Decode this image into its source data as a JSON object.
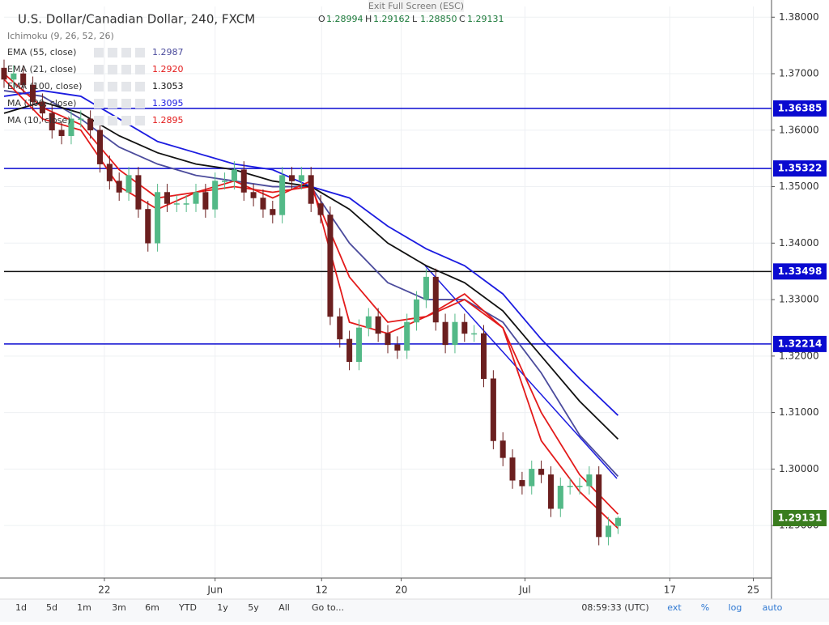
{
  "ui": {
    "title": "U.S. Dollar/Canadian Dollar, 240, FXCM",
    "exit": "Exit Full Screen (ESC)",
    "ohlc": [
      {
        "key": "O",
        "value": "1.28994"
      },
      {
        "key": "H",
        "value": "1.29162"
      },
      {
        "key": "L",
        "value": "1.28850"
      },
      {
        "key": "C",
        "value": "1.29131"
      }
    ],
    "indicator": "Ichimoku (9, 26, 52, 26)",
    "ranges": [
      "1d",
      "5d",
      "1m",
      "3m",
      "6m",
      "YTD",
      "1y",
      "5y",
      "All",
      "Go to..."
    ],
    "time": "08:59:33 (UTC)",
    "options": [
      "ext",
      "%",
      "log",
      "auto"
    ]
  },
  "chart_data": {
    "type": "candlestick",
    "xlim": [
      0,
      80
    ],
    "ylim": [
      1.2807,
      1.3819
    ],
    "xticks": [
      {
        "value": 10.46,
        "label": "22"
      },
      {
        "value": 22.0,
        "label": "Jun"
      },
      {
        "value": 33.1,
        "label": "12"
      },
      {
        "value": 41.4,
        "label": "20"
      },
      {
        "value": 54.3,
        "label": "Jul"
      },
      {
        "value": 69.4,
        "label": "17"
      },
      {
        "value": 78.1,
        "label": "25"
      }
    ],
    "yticks": [
      {
        "value": 1.38,
        "label": "1.38000"
      },
      {
        "value": 1.37,
        "label": "1.37000"
      },
      {
        "value": 1.36,
        "label": "1.36000"
      },
      {
        "value": 1.35,
        "label": "1.35000"
      },
      {
        "value": 1.34,
        "label": "1.34000"
      },
      {
        "value": 1.33,
        "label": "1.33000"
      },
      {
        "value": 1.32,
        "label": "1.32000"
      },
      {
        "value": 1.31,
        "label": "1.31000"
      },
      {
        "value": 1.3,
        "label": "1.30000"
      },
      {
        "value": 1.29,
        "label": "1.29000"
      }
    ],
    "grid": true,
    "up_color": "#53b987",
    "down_color": "#6b1f1f",
    "last_color": "#3a7d1f",
    "badge_color": "#0a0ad0",
    "x": [
      0,
      1,
      2,
      3,
      4,
      5,
      6,
      7,
      8,
      9,
      10,
      11,
      12,
      13,
      14,
      15,
      16,
      17,
      18,
      19,
      20,
      21,
      22,
      23,
      24,
      25,
      26,
      27,
      28,
      29,
      30,
      31,
      32,
      33,
      34,
      35,
      36,
      37,
      38,
      39,
      40,
      41,
      42,
      43,
      44,
      45,
      46,
      47,
      48,
      49,
      50,
      51,
      52,
      53,
      54,
      55,
      56,
      57,
      58,
      59,
      60,
      61,
      62,
      63,
      64
    ],
    "open": [
      1.371,
      1.369,
      1.37,
      1.368,
      1.365,
      1.363,
      1.36,
      1.359,
      1.362,
      1.362,
      1.36,
      1.354,
      1.351,
      1.349,
      1.352,
      1.346,
      1.34,
      1.349,
      1.347,
      1.347,
      1.347,
      1.349,
      1.346,
      1.351,
      1.351,
      1.353,
      1.349,
      1.348,
      1.346,
      1.345,
      1.352,
      1.351,
      1.352,
      1.347,
      1.345,
      1.327,
      1.323,
      1.319,
      1.325,
      1.327,
      1.324,
      1.322,
      1.321,
      1.326,
      1.33,
      1.334,
      1.326,
      1.322,
      1.326,
      1.324,
      1.324,
      1.316,
      1.305,
      1.302,
      1.298,
      1.297,
      1.3,
      1.299,
      1.293,
      1.297,
      1.297,
      1.297,
      1.299,
      1.288,
      1.28994
    ],
    "high": [
      1.3725,
      1.3715,
      1.3715,
      1.3695,
      1.3665,
      1.3645,
      1.3615,
      1.3635,
      1.3635,
      1.3635,
      1.3615,
      1.3555,
      1.3525,
      1.3535,
      1.3535,
      1.3475,
      1.3505,
      1.3505,
      1.3485,
      1.3485,
      1.3505,
      1.3505,
      1.3525,
      1.3525,
      1.3545,
      1.3545,
      1.3505,
      1.3495,
      1.3475,
      1.3535,
      1.3535,
      1.3535,
      1.3535,
      1.3485,
      1.3465,
      1.3285,
      1.3245,
      1.3265,
      1.3285,
      1.3285,
      1.3255,
      1.3235,
      1.3275,
      1.3315,
      1.3355,
      1.3355,
      1.3275,
      1.3275,
      1.3275,
      1.3255,
      1.3255,
      1.3175,
      1.3065,
      1.3035,
      1.2995,
      1.3015,
      1.3015,
      1.3005,
      1.2985,
      1.2985,
      1.2985,
      1.3005,
      1.3005,
      1.2915,
      1.29162
    ],
    "low": [
      1.3675,
      1.3675,
      1.3665,
      1.3635,
      1.3615,
      1.3585,
      1.3575,
      1.3575,
      1.3605,
      1.3585,
      1.3525,
      1.3495,
      1.3475,
      1.3475,
      1.3445,
      1.3385,
      1.3385,
      1.3455,
      1.3455,
      1.3455,
      1.3455,
      1.3445,
      1.3445,
      1.3495,
      1.3495,
      1.3475,
      1.3465,
      1.3445,
      1.3435,
      1.3435,
      1.3495,
      1.3495,
      1.3455,
      1.3435,
      1.3255,
      1.3215,
      1.3175,
      1.3175,
      1.3235,
      1.3225,
      1.3205,
      1.3195,
      1.3195,
      1.3245,
      1.3285,
      1.3245,
      1.3205,
      1.3205,
      1.3225,
      1.3225,
      1.3145,
      1.3035,
      1.3005,
      1.2965,
      1.2955,
      1.2955,
      1.2975,
      1.2915,
      1.2915,
      1.2955,
      1.2955,
      1.2955,
      1.2865,
      1.2865,
      1.2885
    ],
    "close": [
      1.369,
      1.37,
      1.368,
      1.365,
      1.363,
      1.36,
      1.359,
      1.362,
      1.362,
      1.36,
      1.354,
      1.351,
      1.349,
      1.352,
      1.346,
      1.34,
      1.349,
      1.347,
      1.347,
      1.347,
      1.349,
      1.346,
      1.351,
      1.351,
      1.353,
      1.349,
      1.348,
      1.346,
      1.345,
      1.352,
      1.351,
      1.352,
      1.347,
      1.345,
      1.327,
      1.323,
      1.319,
      1.325,
      1.327,
      1.324,
      1.322,
      1.321,
      1.326,
      1.33,
      1.334,
      1.326,
      1.322,
      1.326,
      1.324,
      1.324,
      1.316,
      1.305,
      1.302,
      1.298,
      1.297,
      1.3,
      1.299,
      1.293,
      1.297,
      1.297,
      1.297,
      1.299,
      1.288,
      1.28994,
      1.29131
    ],
    "series": [
      {
        "name": "EMA (55, close)",
        "color": "#4b4b9c",
        "legend_value": "1.2987",
        "x": [
          0,
          4,
          8,
          12,
          16,
          20,
          24,
          28,
          32,
          36,
          40,
          44,
          48,
          52,
          56,
          60,
          64
        ],
        "values": [
          1.367,
          1.366,
          1.362,
          1.357,
          1.354,
          1.352,
          1.351,
          1.35,
          1.35,
          1.34,
          1.333,
          1.33,
          1.33,
          1.326,
          1.317,
          1.306,
          1.2987
        ]
      },
      {
        "name": "EMA (21, close)",
        "color": "#e31b1b",
        "legend_value": "1.2920",
        "x": [
          0,
          4,
          8,
          12,
          16,
          20,
          24,
          28,
          32,
          36,
          40,
          44,
          48,
          52,
          56,
          60,
          64
        ],
        "values": [
          1.37,
          1.364,
          1.361,
          1.353,
          1.348,
          1.349,
          1.35,
          1.349,
          1.35,
          1.334,
          1.326,
          1.327,
          1.33,
          1.325,
          1.31,
          1.299,
          1.292
        ]
      },
      {
        "name": "EMA (100, close)",
        "color": "#111111",
        "legend_value": "1.3053",
        "x": [
          0,
          4,
          8,
          12,
          16,
          20,
          24,
          28,
          32,
          36,
          40,
          44,
          48,
          52,
          56,
          60,
          64
        ],
        "values": [
          1.363,
          1.365,
          1.363,
          1.359,
          1.356,
          1.354,
          1.353,
          1.351,
          1.35,
          1.346,
          1.34,
          1.336,
          1.333,
          1.328,
          1.32,
          1.312,
          1.3053
        ]
      },
      {
        "name": "MA (100, close)",
        "color": "#1c1ce0",
        "legend_value": "1.3095",
        "x": [
          0,
          4,
          8,
          12,
          16,
          20,
          24,
          28,
          32,
          36,
          40,
          44,
          48,
          52,
          56,
          60,
          64
        ],
        "values": [
          1.366,
          1.367,
          1.366,
          1.362,
          1.358,
          1.356,
          1.354,
          1.353,
          1.35,
          1.348,
          1.343,
          1.339,
          1.336,
          1.331,
          1.323,
          1.316,
          1.3095
        ]
      },
      {
        "name": "MA (10, close)",
        "color": "#e31b1b",
        "legend_value": "1.2895",
        "x": [
          0,
          4,
          8,
          12,
          16,
          20,
          24,
          28,
          32,
          36,
          40,
          44,
          48,
          52,
          56,
          60,
          64
        ],
        "values": [
          1.369,
          1.362,
          1.36,
          1.35,
          1.346,
          1.349,
          1.351,
          1.348,
          1.351,
          1.326,
          1.324,
          1.327,
          1.331,
          1.325,
          1.305,
          1.296,
          1.2895
        ]
      }
    ],
    "hlines": [
      {
        "value": 1.36385,
        "color": "#0a0ad0"
      },
      {
        "value": 1.35322,
        "color": "#0a0ad0"
      },
      {
        "value": 1.33498,
        "color": "#111111"
      },
      {
        "value": 1.32214,
        "color": "#0a0ad0"
      }
    ]
  }
}
